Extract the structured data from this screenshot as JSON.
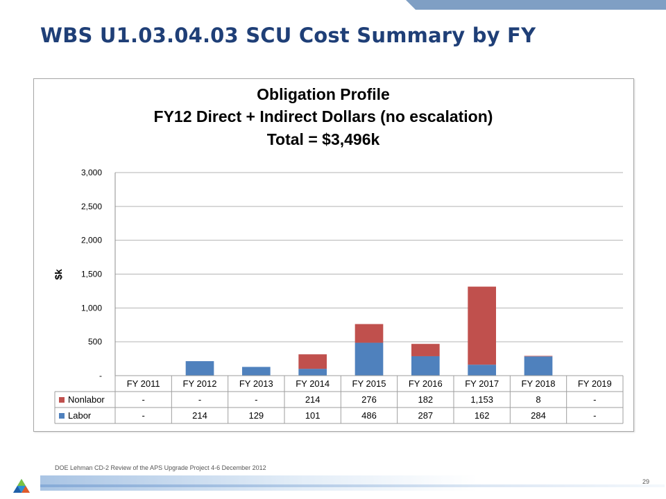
{
  "slide": {
    "title": "WBS U1.03.04.03 SCU Cost Summary by FY",
    "footer": "DOE Lehman CD-2 Review of the APS Upgrade Project   4-6 December  2012",
    "page_number": "29"
  },
  "colors": {
    "labor": "#4f81bd",
    "nonlabor": "#c0504d",
    "title_blue": "#1f3f77",
    "top_bar": "#7f9fc4"
  },
  "chart_data": {
    "type": "bar",
    "stacked": true,
    "title_lines": [
      "Obligation Profile",
      "FY12 Direct + Indirect Dollars (no escalation)",
      "Total = $3,496k"
    ],
    "ylabel": "$k",
    "xlabel": "",
    "ylim": [
      0,
      3000
    ],
    "yticks": [
      0,
      500,
      1000,
      1500,
      2000,
      2500,
      3000
    ],
    "ytick_labels": [
      "-",
      "500",
      "1,000",
      "1,500",
      "2,000",
      "2,500",
      "3,000"
    ],
    "grid": true,
    "categories": [
      "FY 2011",
      "FY 2012",
      "FY 2013",
      "FY 2014",
      "FY 2015",
      "FY 2016",
      "FY 2017",
      "FY 2018",
      "FY 2019"
    ],
    "series": [
      {
        "name": "Labor",
        "color": "#4f81bd",
        "values": [
          0,
          214,
          129,
          101,
          486,
          287,
          162,
          284,
          0
        ],
        "display": [
          "-",
          "214",
          "129",
          "101",
          "486",
          "287",
          "162",
          "284",
          "-"
        ]
      },
      {
        "name": "Nonlabor",
        "color": "#c0504d",
        "values": [
          0,
          0,
          0,
          214,
          276,
          182,
          1153,
          8,
          0
        ],
        "display": [
          "-",
          "-",
          "-",
          "214",
          "276",
          "182",
          "1,153",
          "8",
          "-"
        ]
      }
    ],
    "table_row_order": [
      "Nonlabor",
      "Labor"
    ]
  }
}
